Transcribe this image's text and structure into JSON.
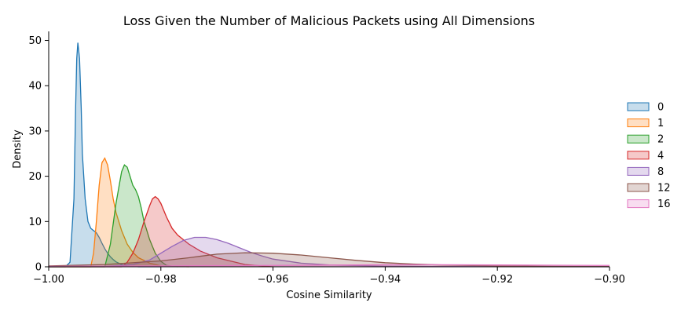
{
  "chart_data": {
    "type": "area",
    "title": "Loss Given the Number of Malicious Packets using All Dimensions",
    "xlabel": "Cosine Similarity",
    "ylabel": "Density",
    "xlim": [
      -1.0,
      -0.9
    ],
    "ylim": [
      0,
      52
    ],
    "x_ticks": [
      -1.0,
      -0.98,
      -0.96,
      -0.94,
      -0.92,
      -0.9
    ],
    "x_tick_labels": [
      "−1.00",
      "−0.98",
      "−0.96",
      "−0.94",
      "−0.92",
      "−0.90"
    ],
    "y_ticks": [
      0,
      10,
      20,
      30,
      40,
      50
    ],
    "y_tick_labels": [
      "0",
      "10",
      "20",
      "30",
      "40",
      "50"
    ],
    "grid": false,
    "legend_placement": "right",
    "series": [
      {
        "name": "0",
        "color": "#1f77b4",
        "x": [
          -1.0,
          -0.997,
          -0.9962,
          -0.9955,
          -0.9952,
          -0.995,
          -0.9948,
          -0.9945,
          -0.9942,
          -0.994,
          -0.9935,
          -0.993,
          -0.9925,
          -0.992,
          -0.9915,
          -0.991,
          -0.9905,
          -0.99,
          -0.9895,
          -0.989,
          -0.9885,
          -0.988,
          -0.987,
          -0.986,
          -0.984,
          -0.98
        ],
        "y": [
          0,
          0,
          1,
          15,
          35,
          46,
          49.5,
          46,
          35,
          25,
          15,
          10,
          8.5,
          8,
          7.5,
          6.5,
          5.2,
          4.0,
          3.0,
          2.2,
          1.6,
          1.1,
          0.5,
          0.2,
          0,
          0
        ]
      },
      {
        "name": "1",
        "color": "#ff7f0e",
        "x": [
          -1.0,
          -0.9925,
          -0.992,
          -0.9915,
          -0.991,
          -0.9905,
          -0.99,
          -0.9895,
          -0.989,
          -0.9885,
          -0.988,
          -0.987,
          -0.986,
          -0.985,
          -0.984,
          -0.982,
          -0.98,
          -0.975
        ],
        "y": [
          0,
          0,
          3,
          10,
          18,
          23,
          24,
          22.5,
          19,
          15,
          12,
          8,
          5,
          3.2,
          2.0,
          0.8,
          0.2,
          0
        ]
      },
      {
        "name": "2",
        "color": "#2ca02c",
        "x": [
          -1.0,
          -0.99,
          -0.989,
          -0.988,
          -0.987,
          -0.9865,
          -0.986,
          -0.9855,
          -0.985,
          -0.9845,
          -0.984,
          -0.9835,
          -0.983,
          -0.9825,
          -0.982,
          -0.981,
          -0.98,
          -0.979,
          -0.977
        ],
        "y": [
          0,
          0,
          5,
          14,
          21,
          22.5,
          22,
          20,
          18,
          17,
          15.5,
          13,
          10,
          8,
          6,
          3,
          1.2,
          0.3,
          0
        ]
      },
      {
        "name": "4",
        "color": "#d62728",
        "x": [
          -1.0,
          -0.987,
          -0.986,
          -0.985,
          -0.984,
          -0.983,
          -0.982,
          -0.9815,
          -0.981,
          -0.9805,
          -0.98,
          -0.979,
          -0.978,
          -0.977,
          -0.976,
          -0.975,
          -0.973,
          -0.97,
          -0.965,
          -0.96
        ],
        "y": [
          0,
          0,
          1,
          3,
          6,
          10,
          13.5,
          15,
          15.5,
          15,
          14,
          11,
          8.5,
          7,
          6,
          5,
          3.5,
          2.0,
          0.5,
          0
        ]
      },
      {
        "name": "8",
        "color": "#9467bd",
        "x": [
          -1.0,
          -0.99,
          -0.985,
          -0.982,
          -0.98,
          -0.978,
          -0.976,
          -0.974,
          -0.972,
          -0.97,
          -0.968,
          -0.966,
          -0.964,
          -0.962,
          -0.96,
          -0.955,
          -0.95,
          -0.94,
          -0.93,
          -0.9
        ],
        "y": [
          0,
          0.1,
          0.5,
          1.5,
          3,
          4.5,
          5.8,
          6.5,
          6.5,
          6.0,
          5.2,
          4.2,
          3.2,
          2.4,
          1.7,
          0.8,
          0.4,
          0.15,
          0.05,
          0
        ]
      },
      {
        "name": "12",
        "color": "#8c564b",
        "x": [
          -1.0,
          -0.99,
          -0.98,
          -0.975,
          -0.97,
          -0.965,
          -0.96,
          -0.955,
          -0.95,
          -0.945,
          -0.94,
          -0.935,
          -0.93,
          -0.92,
          -0.91,
          -0.9
        ],
        "y": [
          0.2,
          0.5,
          1.3,
          2.0,
          2.8,
          3.1,
          3.0,
          2.6,
          2.0,
          1.4,
          0.9,
          0.6,
          0.4,
          0.2,
          0.1,
          0.05
        ]
      },
      {
        "name": "16",
        "color": "#e377c2",
        "x": [
          -1.0,
          -0.98,
          -0.96,
          -0.94,
          -0.93,
          -0.92,
          -0.91,
          -0.9
        ],
        "y": [
          0.1,
          0.2,
          0.3,
          0.45,
          0.45,
          0.4,
          0.35,
          0.3
        ]
      }
    ]
  }
}
